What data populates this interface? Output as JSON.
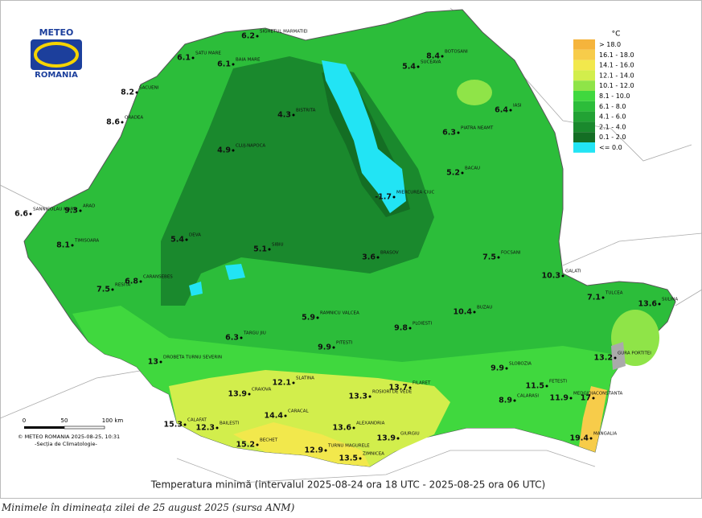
{
  "logo": {
    "top": "METEO",
    "bottom": "ROMANIA"
  },
  "legend": {
    "unit": "°C",
    "items": [
      {
        "label": "> 18.0",
        "color": "#f5b43c"
      },
      {
        "label": "16.1 - 18.0",
        "color": "#f7cc4a"
      },
      {
        "label": "14.1 - 16.0",
        "color": "#f2e84c"
      },
      {
        "label": "12.1 - 14.0",
        "color": "#d2ee4c"
      },
      {
        "label": "10.1 - 12.0",
        "color": "#8fe448"
      },
      {
        "label": "8.1 - 10.0",
        "color": "#40d83e"
      },
      {
        "label": "6.1 - 8.0",
        "color": "#2cbd3a"
      },
      {
        "label": "4.1 - 6.0",
        "color": "#22a234"
      },
      {
        "label": "2.1 - 4.0",
        "color": "#1a892d"
      },
      {
        "label": "0.1 - 2.0",
        "color": "#146e24"
      },
      {
        "label": "<= 0.0",
        "color": "#22e4f4"
      }
    ]
  },
  "stations": [
    {
      "name": "SATU MARE",
      "value": 6.1
    },
    {
      "name": "SIGHETUL MARMATIEI",
      "value": 6.2
    },
    {
      "name": "BAIA MARE",
      "value": 6.1
    },
    {
      "name": "ORADEA",
      "value": 8.6
    },
    {
      "name": "SACUENI",
      "value": 8.2
    },
    {
      "name": "CLUJ-NAPOCA",
      "value": 4.9
    },
    {
      "name": "BISTRITA",
      "value": 4.3
    },
    {
      "name": "SUCEAVA",
      "value": 5.4
    },
    {
      "name": "BOTOSANI",
      "value": 8.4
    },
    {
      "name": "IASI",
      "value": 6.4
    },
    {
      "name": "BACAU",
      "value": 5.2
    },
    {
      "name": "PIATRA NEAMT",
      "value": 6.3
    },
    {
      "name": "MIERCUREA CIUC",
      "value": -1.7
    },
    {
      "name": "ARAD",
      "value": 9.3
    },
    {
      "name": "TIMISOARA",
      "value": 8.1
    },
    {
      "name": "SANNICOLAU MARE",
      "value": 6.6
    },
    {
      "name": "DEVA",
      "value": 5.4
    },
    {
      "name": "SIBIU",
      "value": 5.1
    },
    {
      "name": "BRASOV",
      "value": 3.6
    },
    {
      "name": "TULCEA",
      "value": 7.1
    },
    {
      "name": "SULINA",
      "value": 13.6
    },
    {
      "name": "CONSTANTA",
      "value": 17
    },
    {
      "name": "MANGALIA",
      "value": 19.4
    },
    {
      "name": "FILARET",
      "value": 13.7
    },
    {
      "name": "CRAIOVA",
      "value": 13.9
    },
    {
      "name": "CALAFAT",
      "value": 15.3
    },
    {
      "name": "BECHET",
      "value": 15.2
    },
    {
      "name": "TURNU MAGURELE",
      "value": 12.9
    },
    {
      "name": "ZIMNICEA",
      "value": 13.5
    },
    {
      "name": "GIURGIU",
      "value": 13.9
    },
    {
      "name": "ALEXANDRIA",
      "value": 13.6
    },
    {
      "name": "ROSIORI DE VEDE",
      "value": 13.3
    },
    {
      "name": "DROBETA TURNU SEVERIN",
      "value": 13
    },
    {
      "name": "TARGU JIU",
      "value": 6.3
    },
    {
      "name": "RAMNICU VALCEA",
      "value": 5.9
    },
    {
      "name": "PITESTI",
      "value": 9.9
    },
    {
      "name": "PLOIESTI",
      "value": 9.8
    },
    {
      "name": "BUZAU",
      "value": 10.4
    },
    {
      "name": "GALATI",
      "value": 10.3
    },
    {
      "name": "FOCSANI",
      "value": 7.5
    },
    {
      "name": "SLOBOZIA",
      "value": 9.9
    },
    {
      "name": "CALARASI",
      "value": 8.9
    },
    {
      "name": "FETESTI",
      "value": 11.5
    },
    {
      "name": "CARACAL",
      "value": 14.4
    },
    {
      "name": "SLATINA",
      "value": 12.1
    },
    {
      "name": "BAILESTI",
      "value": 12.3
    },
    {
      "name": "RESITA",
      "value": 7.5
    },
    {
      "name": "CARANSEBES",
      "value": 6.8
    },
    {
      "name": "GURA PORTITEI",
      "value": 13.2
    },
    {
      "name": "MEDGIDIA",
      "value": 11.9
    }
  ],
  "scale": {
    "ticks": [
      "0",
      "50",
      "100 km"
    ],
    "copyright": "© METEO ROMANIA 2025-08-25, 10:31",
    "section": "-Secția de Climatologie-"
  },
  "title": "Temperatura minimă (intervalul 2025-08-24 ora 18 UTC - 2025-08-25 ora 06 UTC)",
  "caption": "Minimele în dimineața zilei de 25 august 2025 (sursa ANM)"
}
